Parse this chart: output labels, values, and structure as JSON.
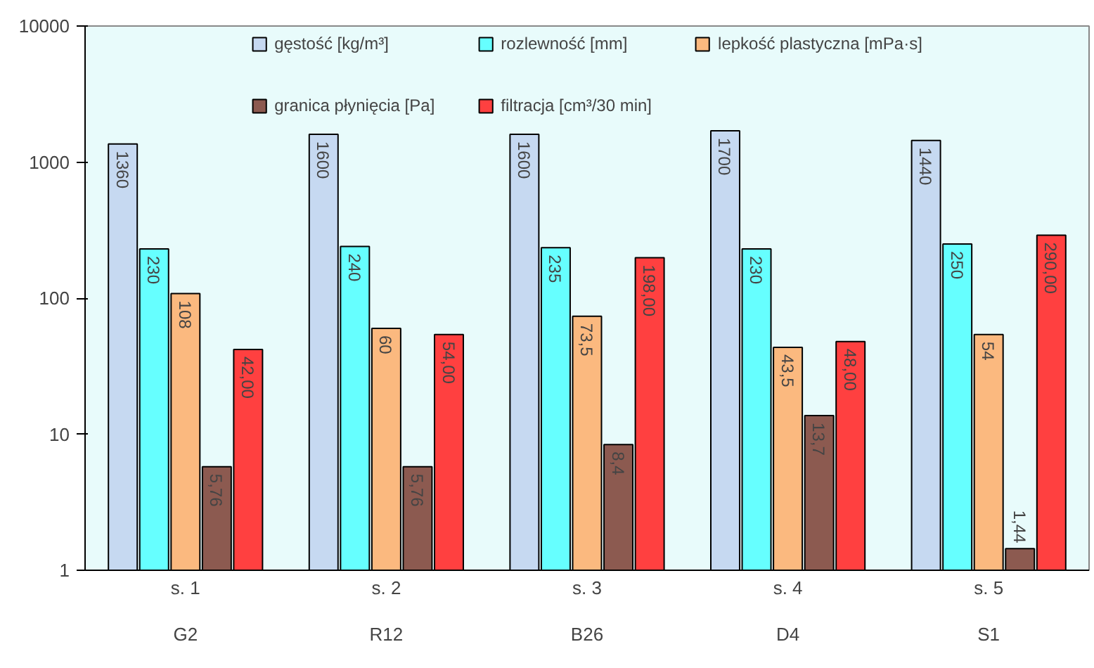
{
  "chart_data": {
    "type": "bar",
    "categories": [
      "s. 1\nG2",
      "s. 2\nR12",
      "s. 3\nB26",
      "s. 4\nD4",
      "s. 5\nS1"
    ],
    "log": true,
    "ylim": [
      1,
      10000
    ],
    "yticks": [
      1,
      10,
      100,
      1000,
      10000
    ],
    "grid": false,
    "legend": "top",
    "series": [
      {
        "name": "gęstość [kg/m³]",
        "color": "#c6d9f1",
        "values": [
          1360,
          1600,
          1600,
          1700,
          1440
        ],
        "value_labels": [
          "1360",
          "1600",
          "1600",
          "1700",
          "1440"
        ]
      },
      {
        "name": "rozlewność [mm]",
        "color": "#66ffff",
        "values": [
          230,
          240,
          235,
          230,
          250
        ],
        "value_labels": [
          "230",
          "240",
          "235",
          "230",
          "250"
        ]
      },
      {
        "name": "lepkość plastyczna [mPa·s]",
        "color": "#fbb97f",
        "values": [
          108,
          60,
          73.5,
          43.5,
          54
        ],
        "value_labels": [
          "108",
          "60",
          "73,5",
          "43,5",
          "54"
        ]
      },
      {
        "name": "granica płynięcia [Pa]",
        "color": "#8c5a50",
        "values": [
          5.76,
          5.76,
          8.4,
          13.7,
          1.44
        ],
        "value_labels": [
          "5,76",
          "5,76",
          "8,4",
          "13,7",
          "1,44"
        ]
      },
      {
        "name": "filtracja [cm³/30 min]",
        "color": "#ff4040",
        "values": [
          42.0,
          54.0,
          198.0,
          48.0,
          290.0
        ],
        "value_labels": [
          "42,00",
          "54,00",
          "198,00",
          "48,00",
          "290,00"
        ]
      }
    ]
  }
}
